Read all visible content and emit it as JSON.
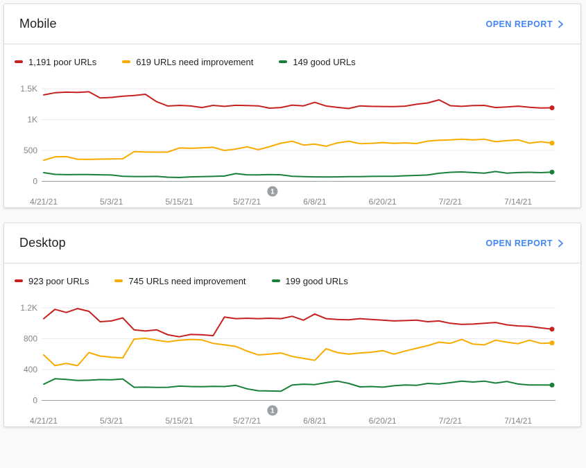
{
  "page": {
    "background": "#F8F9FA"
  },
  "cards": [
    {
      "title": "Mobile",
      "open_report_label": "OPEN REPORT",
      "open_report_color": "#4285F4",
      "legend": [
        {
          "label": "1,191 poor URLs",
          "color": "#C5221F"
        },
        {
          "label": "619 URLs need improvement",
          "color": "#F9AB00"
        },
        {
          "label": "149 good URLs",
          "color": "#188038"
        }
      ],
      "chart_data": {
        "type": "line",
        "title": "Mobile Core Web Vitals URL counts over time",
        "x_tick_labels": [
          "4/21/21",
          "5/3/21",
          "5/15/21",
          "5/27/21",
          "6/8/21",
          "6/20/21",
          "7/2/21",
          "7/14/21"
        ],
        "x_tick_days": [
          0,
          12,
          24,
          36,
          48,
          60,
          72,
          84
        ],
        "x_days_total": 90,
        "day_step": 2,
        "y_tick_labels": [
          "1.5K",
          "1K",
          "500",
          "0"
        ],
        "y_max": 1500,
        "grid": "on",
        "legend_position": "top",
        "annotation": {
          "label": "1",
          "day": 40.5
        },
        "series": [
          {
            "id": "poor",
            "name": "poor URLs",
            "color": "#C5221F",
            "current": 1191,
            "values": [
              1400,
              1435,
              1445,
              1440,
              1450,
              1350,
              1360,
              1380,
              1390,
              1410,
              1290,
              1220,
              1230,
              1222,
              1195,
              1230,
              1215,
              1232,
              1228,
              1222,
              1185,
              1195,
              1235,
              1222,
              1280,
              1220,
              1198,
              1180,
              1222,
              1215,
              1212,
              1210,
              1218,
              1248,
              1270,
              1320,
              1225,
              1215,
              1228,
              1230,
              1195,
              1205,
              1218,
              1200,
              1188,
              1191
            ]
          },
          {
            "id": "need-improvement",
            "name": "URLs need improvement",
            "color": "#F9AB00",
            "current": 619,
            "values": [
              340,
              395,
              400,
              358,
              355,
              360,
              362,
              365,
              480,
              475,
              472,
              475,
              540,
              535,
              542,
              552,
              500,
              522,
              558,
              512,
              562,
              618,
              650,
              588,
              602,
              568,
              622,
              650,
              610,
              615,
              628,
              615,
              622,
              612,
              652,
              665,
              672,
              682,
              672,
              682,
              642,
              658,
              672,
              618,
              642,
              619
            ]
          },
          {
            "id": "good",
            "name": "good URLs",
            "color": "#188038",
            "current": 149,
            "values": [
              140,
              112,
              108,
              110,
              110,
              106,
              102,
              82,
              78,
              78,
              80,
              66,
              62,
              72,
              76,
              80,
              85,
              125,
              106,
              105,
              110,
              106,
              82,
              75,
              72,
              70,
              72,
              75,
              76,
              80,
              82,
              82,
              90,
              96,
              102,
              130,
              146,
              152,
              142,
              133,
              158,
              133,
              142,
              146,
              140,
              149
            ]
          }
        ]
      }
    },
    {
      "title": "Desktop",
      "open_report_label": "OPEN REPORT",
      "open_report_color": "#4285F4",
      "legend": [
        {
          "label": "923 poor URLs",
          "color": "#C5221F"
        },
        {
          "label": "745 URLs need improvement",
          "color": "#F9AB00"
        },
        {
          "label": "199 good URLs",
          "color": "#188038"
        }
      ],
      "chart_data": {
        "type": "line",
        "title": "Desktop Core Web Vitals URL counts over time",
        "x_tick_labels": [
          "4/21/21",
          "5/3/21",
          "5/15/21",
          "5/27/21",
          "6/8/21",
          "6/20/21",
          "7/2/21",
          "7/14/21"
        ],
        "x_tick_days": [
          0,
          12,
          24,
          36,
          48,
          60,
          72,
          84
        ],
        "x_days_total": 90,
        "day_step": 2,
        "y_tick_labels": [
          "1.2K",
          "800",
          "400",
          "0"
        ],
        "y_max": 1200,
        "grid": "on",
        "legend_position": "top",
        "annotation": {
          "label": "1",
          "day": 40.5
        },
        "series": [
          {
            "id": "poor",
            "name": "poor URLs",
            "color": "#C5221F",
            "current": 923,
            "values": [
              1060,
              1180,
              1140,
              1190,
              1155,
              1020,
              1030,
              1070,
              915,
              900,
              915,
              850,
              825,
              855,
              850,
              840,
              1080,
              1060,
              1065,
              1060,
              1065,
              1060,
              1090,
              1040,
              1120,
              1060,
              1050,
              1045,
              1060,
              1050,
              1040,
              1030,
              1035,
              1040,
              1020,
              1030,
              1000,
              985,
              990,
              1000,
              1010,
              980,
              965,
              960,
              940,
              923
            ]
          },
          {
            "id": "need-improvement",
            "name": "URLs need improvement",
            "color": "#F9AB00",
            "current": 745,
            "values": [
              590,
              450,
              480,
              450,
              620,
              575,
              560,
              550,
              795,
              805,
              780,
              760,
              780,
              790,
              785,
              740,
              720,
              700,
              640,
              590,
              600,
              615,
              570,
              545,
              520,
              670,
              620,
              600,
              615,
              625,
              645,
              600,
              640,
              675,
              710,
              755,
              740,
              790,
              730,
              720,
              780,
              755,
              735,
              780,
              740,
              745
            ]
          },
          {
            "id": "good",
            "name": "good URLs",
            "color": "#188038",
            "current": 199,
            "values": [
              210,
              280,
              272,
              258,
              262,
              270,
              268,
              278,
              170,
              172,
              168,
              170,
              185,
              180,
              178,
              182,
              180,
              195,
              150,
              125,
              122,
              120,
              200,
              210,
              205,
              230,
              250,
              220,
              175,
              180,
              172,
              190,
              200,
              195,
              220,
              212,
              230,
              250,
              238,
              250,
              225,
              245,
              212,
              200,
              200,
              199
            ]
          }
        ]
      }
    }
  ],
  "annotation_marker_color": "#9AA0A6"
}
